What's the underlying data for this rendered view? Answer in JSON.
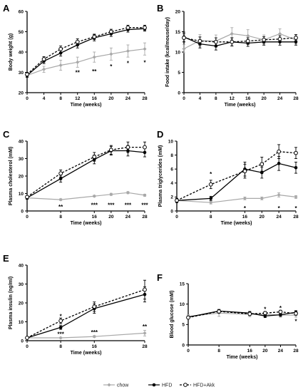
{
  "colors": {
    "chow": "#a8a8a8",
    "hfd": "#000000",
    "hfdakk": "#000000"
  },
  "legend": [
    {
      "key": "chow",
      "label": "chow"
    },
    {
      "key": "hfd",
      "label": "HFD"
    },
    {
      "key": "hfdakk",
      "label": "HFD+Akk"
    }
  ],
  "chart_data": [
    {
      "panel": "A",
      "type": "line",
      "xlabel": "Time (weeks)",
      "ylabel": "Body weight (g)",
      "x": [
        0,
        4,
        8,
        12,
        16,
        20,
        24,
        28
      ],
      "xticks": [
        0,
        4,
        8,
        12,
        16,
        20,
        24,
        28
      ],
      "xlim": [
        0,
        28
      ],
      "ylim": [
        20,
        60
      ],
      "yticks": [
        20,
        30,
        40,
        50,
        60
      ],
      "series": [
        {
          "key": "chow",
          "x": [
            0,
            4,
            8,
            12,
            16,
            20,
            24,
            28
          ],
          "values": [
            28.5,
            31.5,
            33.5,
            35,
            37.5,
            39,
            40.5,
            41.5
          ],
          "err": [
            1,
            1.5,
            2.5,
            2.5,
            2.5,
            3,
            3,
            3
          ]
        },
        {
          "key": "hfd",
          "x": [
            0,
            4,
            8,
            12,
            16,
            20,
            24,
            28
          ],
          "values": [
            28.5,
            35.5,
            39.5,
            43.5,
            47,
            49,
            51,
            51.5
          ],
          "err": [
            1,
            1.2,
            1.5,
            1.5,
            1.5,
            1.3,
            1.2,
            1.2
          ]
        },
        {
          "key": "hfdakk",
          "x": [
            0,
            4,
            8,
            12,
            16,
            20,
            24,
            28
          ],
          "values": [
            29,
            36.5,
            41.5,
            45,
            47.5,
            50,
            52,
            52
          ],
          "err": [
            1,
            1.2,
            1.5,
            1.5,
            1.3,
            1.2,
            1.2,
            1.2
          ]
        }
      ],
      "annotations": [
        {
          "x": 12,
          "y": 30,
          "text": "**"
        },
        {
          "x": 16,
          "y": 30.5,
          "text": "**"
        },
        {
          "x": 20,
          "y": 33,
          "text": "*"
        },
        {
          "x": 24,
          "y": 34.5,
          "text": "*"
        },
        {
          "x": 28,
          "y": 35,
          "text": "*"
        }
      ]
    },
    {
      "panel": "B",
      "type": "line",
      "xlabel": "Time (weeks)",
      "ylabel": "Food intake (kcal/mouse/day)",
      "x": [
        0,
        4,
        8,
        12,
        16,
        20,
        24,
        28
      ],
      "xticks": [
        0,
        4,
        8,
        12,
        16,
        20,
        24,
        28
      ],
      "xlim": [
        0,
        28
      ],
      "ylim": [
        0,
        20
      ],
      "yticks": [
        0,
        5,
        10,
        15,
        20
      ],
      "series": [
        {
          "key": "chow",
          "x": [
            0,
            4,
            8,
            12,
            16,
            20,
            24,
            28
          ],
          "values": [
            10.8,
            12.8,
            12.7,
            14.5,
            14,
            13,
            14.5,
            13
          ],
          "err": [
            1,
            1.5,
            1.5,
            1.5,
            1.5,
            1.2,
            1.2,
            1
          ]
        },
        {
          "key": "hfd",
          "x": [
            0,
            4,
            8,
            12,
            16,
            20,
            24,
            28
          ],
          "values": [
            13.7,
            12,
            11.5,
            12.5,
            12.2,
            12.5,
            12.5,
            12.5
          ],
          "err": [
            1.2,
            1,
            1,
            1,
            0.8,
            0.8,
            0.8,
            0.8
          ]
        },
        {
          "key": "hfdakk",
          "x": [
            0,
            4,
            8,
            12,
            16,
            20,
            24,
            28
          ],
          "values": [
            13.5,
            12.7,
            12.5,
            12.5,
            12.7,
            13,
            13.2,
            13.5
          ],
          "err": [
            1,
            1,
            1,
            1,
            0.8,
            0.8,
            0.8,
            0.8
          ]
        }
      ],
      "annotations": []
    },
    {
      "panel": "C",
      "type": "line",
      "xlabel": "Time (weeks)",
      "ylabel": "Plasma cholesterol (mM)",
      "x": [
        0,
        8,
        16,
        20,
        24,
        28
      ],
      "xticks": [
        0,
        8,
        16,
        20,
        24,
        28
      ],
      "xlim": [
        0,
        28
      ],
      "ylim": [
        0,
        40
      ],
      "yticks": [
        0,
        10,
        20,
        30,
        40
      ],
      "series": [
        {
          "key": "chow",
          "x": [
            0,
            8,
            16,
            20,
            24,
            28
          ],
          "values": [
            7.5,
            6.5,
            8.5,
            9.5,
            10.5,
            9
          ],
          "err": [
            0.5,
            0.5,
            0.5,
            0.6,
            0.6,
            0.6
          ]
        },
        {
          "key": "hfd",
          "x": [
            0,
            8,
            16,
            20,
            24,
            28
          ],
          "values": [
            7.5,
            18.5,
            29.5,
            34.5,
            34.5,
            33.5
          ],
          "err": [
            0.8,
            2,
            2.5,
            2.5,
            3,
            2.5
          ]
        },
        {
          "key": "hfdakk",
          "x": [
            0,
            8,
            16,
            20,
            24,
            28
          ],
          "values": [
            8,
            21.5,
            31,
            35,
            36.5,
            36.5
          ],
          "err": [
            0.8,
            2,
            2.5,
            2.5,
            3,
            3
          ]
        }
      ],
      "annotations": [
        {
          "x": 8,
          "y": 2.5,
          "text": "**"
        },
        {
          "x": 16,
          "y": 3.5,
          "text": "***"
        },
        {
          "x": 20,
          "y": 3.5,
          "text": "***"
        },
        {
          "x": 24,
          "y": 3.5,
          "text": "***"
        },
        {
          "x": 28,
          "y": 3.5,
          "text": "***"
        }
      ]
    },
    {
      "panel": "D",
      "type": "line",
      "xlabel": "Time (weeks)",
      "ylabel": "Plasma triglycerides (mM)",
      "x": [
        0,
        8,
        16,
        20,
        24,
        28
      ],
      "xticks": [
        0,
        8,
        16,
        20,
        24,
        28
      ],
      "xlim": [
        0,
        28
      ],
      "ylim": [
        0,
        10
      ],
      "yticks": [
        0,
        2,
        4,
        6,
        8,
        10
      ],
      "series": [
        {
          "key": "chow",
          "x": [
            0,
            8,
            16,
            20,
            24,
            28
          ],
          "values": [
            1.5,
            1.2,
            1.8,
            1.8,
            2.3,
            2
          ],
          "err": [
            0.2,
            0.2,
            0.2,
            0.2,
            0.3,
            0.2
          ]
        },
        {
          "key": "hfd",
          "x": [
            0,
            8,
            16,
            20,
            24,
            28
          ],
          "values": [
            1.5,
            1.8,
            6,
            5.5,
            6.8,
            6.2
          ],
          "err": [
            0.3,
            0.3,
            1,
            0.8,
            1,
            0.8
          ]
        },
        {
          "key": "hfdakk",
          "x": [
            0,
            8,
            16,
            20,
            24,
            28
          ],
          "values": [
            1.5,
            3.8,
            5.7,
            6.7,
            8.5,
            8.3
          ],
          "err": [
            0.3,
            0.6,
            1,
            1,
            1,
            0.8
          ]
        }
      ],
      "annotations": [
        {
          "x": 8,
          "y": 5.3,
          "text": "*"
        },
        {
          "x": 16,
          "y": 0.4,
          "text": "*"
        },
        {
          "x": 24,
          "y": 0.4,
          "text": "*"
        },
        {
          "x": 28,
          "y": 0.4,
          "text": "*"
        }
      ]
    },
    {
      "panel": "E",
      "type": "line",
      "xlabel": "Time (weeks)",
      "ylabel": "Plasma insulin (ng/ml)",
      "x": [
        0,
        8,
        16,
        28
      ],
      "xticks": [
        0,
        8,
        16,
        28
      ],
      "xlim": [
        0,
        28
      ],
      "ylim": [
        0,
        40
      ],
      "yticks": [
        0,
        10,
        20,
        30,
        40
      ],
      "series": [
        {
          "key": "chow",
          "x": [
            0,
            8,
            16,
            28
          ],
          "values": [
            1.5,
            1.5,
            2.2,
            4
          ],
          "err": [
            0.3,
            0.3,
            0.5,
            1.5
          ]
        },
        {
          "key": "hfd",
          "x": [
            0,
            8,
            16,
            28
          ],
          "values": [
            1.5,
            7,
            17,
            24.5
          ],
          "err": [
            0.3,
            1,
            2.5,
            4
          ]
        },
        {
          "key": "hfdakk",
          "x": [
            0,
            8,
            16,
            28
          ],
          "values": [
            1.5,
            10.5,
            18,
            27
          ],
          "err": [
            0.3,
            1.5,
            2.5,
            5
          ]
        }
      ],
      "annotations": [
        {
          "x": 8,
          "y": 13,
          "text": "*"
        },
        {
          "x": 8,
          "y": 3.5,
          "text": "***"
        },
        {
          "x": 16,
          "y": 4.5,
          "text": "***"
        },
        {
          "x": 28,
          "y": 7.5,
          "text": "**"
        }
      ]
    },
    {
      "panel": "F",
      "type": "line",
      "xlabel": "Time (weeks)",
      "ylabel": "Blood glucose (mM)",
      "x": [
        0,
        8,
        16,
        20,
        24,
        28
      ],
      "xticks": [
        0,
        8,
        16,
        20,
        24,
        28
      ],
      "xlim": [
        0,
        28
      ],
      "ylim": [
        0,
        15
      ],
      "yticks": [
        0,
        5,
        10,
        15
      ],
      "series": [
        {
          "key": "chow",
          "x": [
            0,
            8,
            16,
            20,
            24,
            28
          ],
          "values": [
            7,
            7.8,
            7.5,
            7.5,
            7.3,
            7.3
          ],
          "err": [
            0.4,
            0.8,
            0.6,
            0.5,
            0.5,
            0.5
          ]
        },
        {
          "key": "hfd",
          "x": [
            0,
            8,
            16,
            20,
            24,
            28
          ],
          "values": [
            6.8,
            8.3,
            7.8,
            7.1,
            7.4,
            8
          ],
          "err": [
            0.3,
            0.4,
            0.4,
            0.4,
            0.4,
            0.4
          ]
        },
        {
          "key": "hfdakk",
          "x": [
            0,
            8,
            16,
            20,
            24,
            28
          ],
          "values": [
            6.7,
            8.2,
            7.6,
            7.8,
            8.1,
            7.7
          ],
          "err": [
            0.3,
            0.4,
            0.4,
            0.4,
            0.4,
            0.4
          ]
        }
      ],
      "annotations": [
        {
          "x": 20,
          "y": 8.8,
          "text": "*"
        },
        {
          "x": 24,
          "y": 9.1,
          "text": "*"
        },
        {
          "x": 28,
          "y": 5.8,
          "text": "*"
        }
      ]
    }
  ]
}
